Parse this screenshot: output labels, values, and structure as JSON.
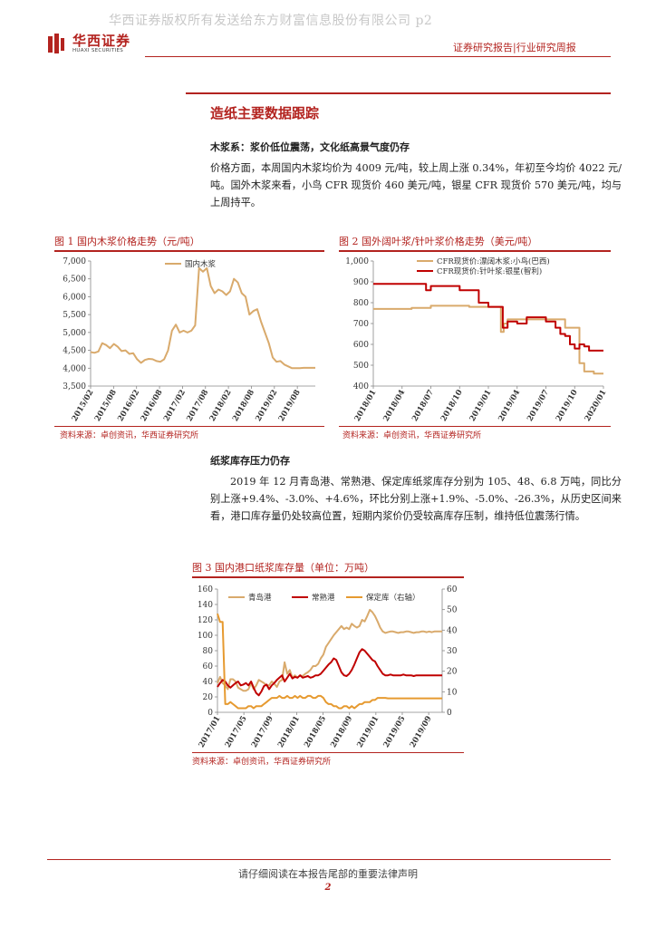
{
  "watermark": "华西证券版权所有发送给东方财富信息股份有限公司 p2",
  "logo": {
    "cn": "华西证券",
    "en": "HUAXI SECURITIES"
  },
  "header": {
    "right": "证券研究报告|行业研究周报"
  },
  "section_title": "造纸主要数据跟踪",
  "pulp": {
    "heading": "木浆系：浆价低位震荡，文化纸高景气度仍存",
    "lead": "价格方面，",
    "text": "本周国内木浆均价为 4009 元/吨，较上周上涨 0.34%，年初至今均价 4022 元/吨。国外木浆来看，小鸟 CFR 现货价 460 美元/吨，银星 CFR 现货价 570 美元/吨，均与上周持平。"
  },
  "fig1": {
    "title": "图 1   国内木浆价格走势（元/吨）",
    "source": "资料来源：卓创资讯，华西证券研究所"
  },
  "fig2": {
    "title": "图 2   国外阔叶浆/针叶浆价格走势（美元/吨）",
    "source": "资料来源：卓创资讯，华西证券研究所"
  },
  "inventory": {
    "heading": "纸浆库存压力仍存",
    "text": "2019 年 12 月青岛港、常熟港、保定库纸浆库存分别为 105、48、6.8 万吨，同比分别上涨+9.4%、-3.0%、+4.6%，环比分别上涨+1.9%、-5.0%、-26.3%，从历史区间来看，港口库存量仍处较高位置，短期内浆价仍受较高库存压制，维持低位震荡行情。"
  },
  "fig3": {
    "title": "图 3   国内港口纸浆库存量（单位：万吨）",
    "source": "资料来源：卓创资讯，华西证券研究所"
  },
  "footer": {
    "note": "请仔细阅读在本报告尾部的重要法律声明",
    "page": "2"
  },
  "colors": {
    "accent": "#b3231f",
    "tan": "#d9aa6c",
    "orange": "#e69a30",
    "darkred": "#c00000"
  },
  "chart_data": [
    {
      "type": "line",
      "title": "国内木浆价格走势（元/吨）",
      "legend": [
        "国内木浆"
      ],
      "ylim": [
        3500,
        7000
      ],
      "yticks": [
        3500,
        4000,
        4500,
        5000,
        5500,
        6000,
        6500,
        7000
      ],
      "ytick_labels": [
        "3,500",
        "4,000",
        "4,500",
        "5,000",
        "5,500",
        "6,000",
        "6,500",
        "7,000"
      ],
      "xtick_labels": [
        "2015/02",
        "2015/08",
        "2016/02",
        "2016/08",
        "2017/02",
        "2017/08",
        "2018/02",
        "2018/08",
        "2019/02",
        "2019/08"
      ],
      "x_start": "2015/02",
      "x_end": "2019/12",
      "series": [
        {
          "name": "国内木浆",
          "color": "#d9aa6c",
          "x": [
            0,
            1,
            2,
            3,
            4,
            5,
            6,
            7,
            8,
            9,
            10,
            11,
            12,
            13,
            14,
            15,
            16,
            17,
            18,
            19,
            20,
            21,
            22,
            23,
            24,
            25,
            26,
            27,
            28,
            29,
            30,
            31,
            32,
            33,
            34,
            35,
            36,
            37,
            38,
            39,
            40,
            41,
            42,
            43,
            44,
            45,
            46,
            47,
            48,
            49,
            50,
            51,
            52,
            53,
            54,
            55,
            56,
            57,
            58
          ],
          "y": [
            4450,
            4430,
            4470,
            4700,
            4650,
            4560,
            4680,
            4600,
            4480,
            4500,
            4400,
            4420,
            4250,
            4150,
            4230,
            4260,
            4250,
            4200,
            4180,
            4250,
            4500,
            5050,
            5220,
            5000,
            5050,
            5000,
            5050,
            5200,
            6800,
            6700,
            6800,
            6300,
            6100,
            6200,
            6150,
            6050,
            6150,
            6500,
            6400,
            6100,
            6000,
            5500,
            5600,
            5650,
            5300,
            5000,
            4700,
            4300,
            4180,
            4200,
            4100,
            4050,
            4000,
            4000,
            4000,
            4010,
            4009,
            4010,
            4009
          ]
        }
      ]
    },
    {
      "type": "line",
      "title": "国外阔叶浆/针叶浆价格走势（美元/吨）",
      "legend": [
        "CFR现货价:漂阔木浆:小鸟(巴西)",
        "CFR现货价:针叶浆:银星(智利)"
      ],
      "ylim": [
        400,
        1000
      ],
      "yticks": [
        400,
        500,
        600,
        700,
        800,
        900,
        1000
      ],
      "ytick_labels": [
        "400",
        "500",
        "600",
        "700",
        "800",
        "900",
        "1,000"
      ],
      "xtick_labels": [
        "2018/01",
        "2018/04",
        "2018/07",
        "2018/10",
        "2019/01",
        "2019/04",
        "2019/07",
        "2019/10",
        "2020/01"
      ],
      "series": [
        {
          "name": "CFR现货价:漂阔木浆:小鸟(巴西)",
          "color": "#d9aa6c",
          "step": true,
          "x": [
            0,
            2,
            4,
            5,
            6,
            8,
            9,
            10,
            11,
            12,
            13,
            13.3,
            13.6,
            14,
            14.5,
            15,
            16,
            17,
            18,
            19,
            20,
            21,
            21.5,
            22,
            22.5,
            23,
            24
          ],
          "y": [
            770,
            770,
            775,
            775,
            785,
            785,
            785,
            780,
            780,
            780,
            780,
            660,
            700,
            720,
            720,
            720,
            720,
            720,
            720,
            720,
            680,
            680,
            510,
            470,
            470,
            460,
            460
          ]
        },
        {
          "name": "CFR现货价:针叶浆:银星(智利)",
          "color": "#c00000",
          "step": true,
          "x": [
            0,
            2,
            4,
            5,
            5.5,
            6,
            8,
            9,
            10,
            11,
            12,
            13,
            13.5,
            14,
            15,
            16,
            17,
            18,
            19,
            19.5,
            20,
            20.5,
            21,
            21.5,
            22,
            22.5,
            23,
            24
          ],
          "y": [
            890,
            890,
            890,
            890,
            860,
            880,
            880,
            860,
            860,
            800,
            780,
            780,
            680,
            710,
            700,
            730,
            730,
            710,
            680,
            650,
            640,
            600,
            580,
            600,
            590,
            570,
            570,
            570
          ]
        }
      ]
    },
    {
      "type": "line",
      "title": "国内港口纸浆库存量（单位：万吨）",
      "legend": [
        "青岛港",
        "常熟港",
        "保定库（右轴）"
      ],
      "ylim": [
        0,
        160
      ],
      "yticks": [
        0,
        20,
        40,
        60,
        80,
        100,
        120,
        140,
        160
      ],
      "ytick_labels": [
        "0",
        "20",
        "40",
        "60",
        "80",
        "100",
        "120",
        "140",
        "160"
      ],
      "y2lim": [
        0,
        60
      ],
      "y2ticks": [
        0,
        10,
        20,
        30,
        40,
        50,
        60
      ],
      "y2tick_labels": [
        "0",
        "10",
        "20",
        "30",
        "40",
        "50",
        "60"
      ],
      "xtick_labels": [
        "2017/01",
        "2017/05",
        "2017/09",
        "2018/01",
        "2018/05",
        "2018/09",
        "2019/01",
        "2019/05",
        "2019/09"
      ],
      "series": [
        {
          "name": "青岛港",
          "axis": "left",
          "color": "#d9aa6c",
          "x": [
            0,
            1,
            2,
            3,
            4,
            5,
            6,
            7,
            8,
            9,
            10,
            11,
            12,
            13,
            14,
            15,
            16,
            17,
            18,
            19,
            20,
            21,
            22,
            23,
            24,
            25,
            26,
            27,
            28,
            29,
            30,
            31,
            32,
            33,
            34,
            35,
            36,
            37,
            38,
            39,
            40,
            41,
            42,
            43,
            44,
            45,
            46,
            47,
            48,
            49,
            50,
            51,
            52,
            53,
            54,
            55,
            56,
            57,
            58,
            59,
            60,
            61,
            62,
            63,
            64,
            65,
            66,
            67,
            68,
            69,
            70,
            71,
            72,
            73,
            74,
            75,
            76,
            77,
            78,
            79,
            80,
            81,
            82,
            83,
            84,
            85,
            86,
            87
          ],
          "y": [
            38,
            46,
            38,
            35,
            30,
            43,
            43,
            40,
            32,
            30,
            28,
            28,
            30,
            38,
            30,
            35,
            42,
            40,
            38,
            35,
            35,
            40,
            37,
            33,
            40,
            42,
            65,
            50,
            55,
            45,
            48,
            45,
            48,
            47,
            50,
            52,
            55,
            60,
            60,
            63,
            70,
            75,
            85,
            90,
            95,
            100,
            104,
            108,
            112,
            108,
            110,
            108,
            115,
            112,
            110,
            112,
            120,
            118,
            125,
            133,
            130,
            125,
            118,
            110,
            105,
            103,
            104,
            105,
            105,
            104,
            103,
            104,
            104,
            105,
            105,
            104,
            103,
            104,
            104,
            105,
            105,
            104,
            105,
            104,
            105,
            105,
            105,
            105
          ]
        },
        {
          "name": "常熟港",
          "axis": "left",
          "color": "#c00000",
          "x": [
            0,
            1,
            2,
            3,
            4,
            5,
            6,
            7,
            8,
            9,
            10,
            11,
            12,
            13,
            14,
            15,
            16,
            17,
            18,
            19,
            20,
            21,
            22,
            23,
            24,
            25,
            26,
            27,
            28,
            29,
            30,
            31,
            32,
            33,
            34,
            35,
            36,
            37,
            38,
            39,
            40,
            41,
            42,
            43,
            44,
            45,
            46,
            47,
            48,
            49,
            50,
            51,
            52,
            53,
            54,
            55,
            56,
            57,
            58,
            59,
            60,
            61,
            62,
            63,
            64,
            65,
            66,
            67,
            68,
            69,
            70,
            71,
            72,
            73,
            74,
            75,
            76,
            77,
            78,
            79,
            80,
            81,
            82,
            83,
            84,
            85,
            86,
            87
          ],
          "y": [
            33,
            38,
            42,
            40,
            35,
            32,
            35,
            38,
            40,
            35,
            36,
            38,
            35,
            40,
            32,
            25,
            22,
            27,
            34,
            36,
            30,
            35,
            38,
            42,
            45,
            48,
            40,
            45,
            50,
            44,
            46,
            45,
            48,
            45,
            46,
            47,
            45,
            46,
            48,
            48,
            50,
            54,
            58,
            62,
            65,
            70,
            68,
            60,
            52,
            48,
            47,
            50,
            55,
            62,
            70,
            78,
            82,
            80,
            76,
            72,
            68,
            66,
            60,
            55,
            50,
            48,
            48,
            49,
            48,
            48,
            48,
            48,
            49,
            48,
            48,
            48,
            47,
            48,
            48,
            48,
            48,
            48,
            48,
            48,
            48,
            48,
            48,
            48
          ]
        },
        {
          "name": "保定库（右轴）",
          "axis": "right",
          "color": "#e69a30",
          "x": [
            0,
            1,
            2,
            3,
            4,
            5,
            6,
            7,
            8,
            9,
            10,
            11,
            12,
            13,
            14,
            15,
            16,
            17,
            18,
            19,
            20,
            21,
            22,
            23,
            24,
            25,
            26,
            27,
            28,
            29,
            30,
            31,
            32,
            33,
            34,
            35,
            36,
            37,
            38,
            39,
            40,
            41,
            42,
            43,
            44,
            45,
            46,
            47,
            48,
            49,
            50,
            51,
            52,
            53,
            54,
            55,
            56,
            57,
            58,
            59,
            60,
            61,
            62,
            63,
            64,
            65,
            66,
            67,
            68,
            69,
            70,
            71,
            72,
            73,
            74,
            75,
            76,
            77,
            78,
            79,
            80,
            81,
            82,
            83,
            84,
            85,
            86,
            87
          ],
          "y": [
            48,
            44,
            44,
            4,
            4,
            5,
            4,
            3,
            2,
            2,
            2,
            2,
            3,
            3,
            2,
            3,
            3,
            3,
            4,
            5,
            6,
            7,
            7,
            7,
            8,
            7,
            7,
            8,
            7,
            7,
            8,
            7,
            8,
            7,
            7,
            8,
            8,
            7,
            7,
            8,
            8,
            7,
            5,
            4,
            4,
            3,
            3,
            2,
            2,
            3,
            3,
            2,
            3,
            2,
            3,
            4,
            4,
            5,
            5,
            5,
            6,
            6,
            7,
            7,
            7,
            7,
            6.8,
            6.8,
            6.8,
            6.8,
            6.8,
            6.8,
            6.8,
            6.8,
            6.8,
            6.8,
            6.8,
            6.8,
            6.8,
            6.8,
            6.8,
            6.8,
            6.8,
            6.8,
            6.8,
            6.8,
            6.8,
            6.8
          ]
        }
      ]
    }
  ]
}
